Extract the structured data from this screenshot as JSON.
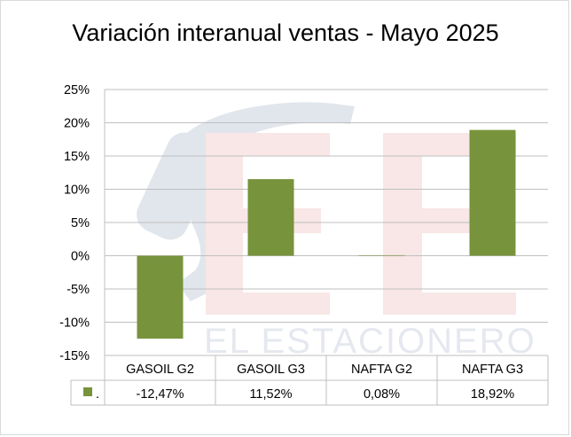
{
  "chart_data": {
    "type": "bar",
    "title": "Variación interanual ventas - Mayo 2025",
    "categories": [
      "GASOIL G2",
      "GASOIL G3",
      "NAFTA G2",
      "NAFTA G3"
    ],
    "series": [
      {
        "name": ".",
        "values": [
          -12.47,
          11.52,
          0.08,
          18.92
        ],
        "labels": [
          "-12,47%",
          "11,52%",
          "0,08%",
          "18,92%"
        ],
        "color": "#77933c"
      }
    ],
    "ylim": [
      -15,
      25
    ],
    "yticks": [
      25,
      20,
      15,
      10,
      5,
      0,
      -5,
      -10,
      -15
    ],
    "ytick_labels": [
      "25%",
      "20%",
      "15%",
      "10%",
      "5%",
      "0%",
      "-5%",
      "-10%",
      "-15%"
    ],
    "grid": true,
    "legend": "data-table"
  },
  "watermark": {
    "text": "EL ESTACIONERO",
    "logo_letters": "EE"
  }
}
